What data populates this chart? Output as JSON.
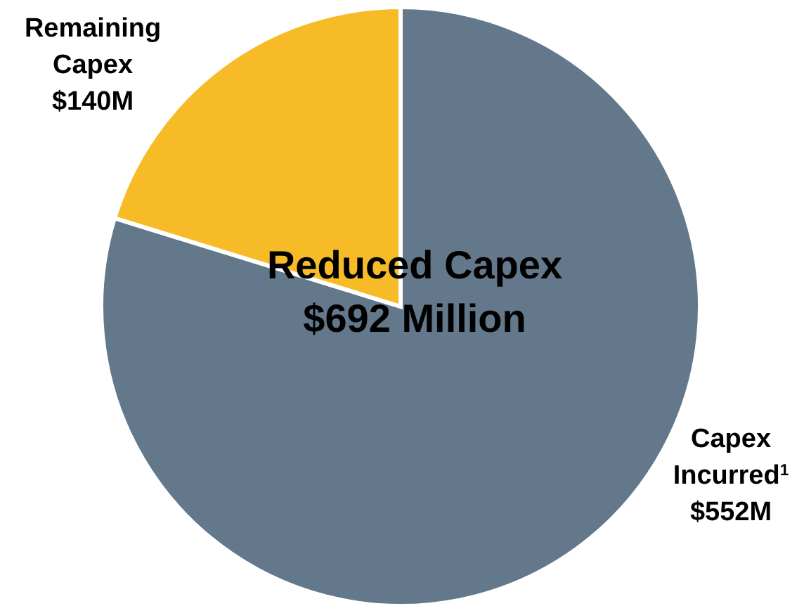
{
  "chart_data": {
    "type": "pie",
    "categories": [
      "Capex Incurred$^{1}$",
      "Remaining Capex"
    ],
    "values": [
      552,
      140
    ],
    "colors": [
      "#64788b",
      "#f6bb27"
    ],
    "value_labels": [
      "$552M",
      "$140M"
    ],
    "annotations": [
      "Reduced Capex",
      "$692 Million"
    ],
    "legend": false
  }
}
